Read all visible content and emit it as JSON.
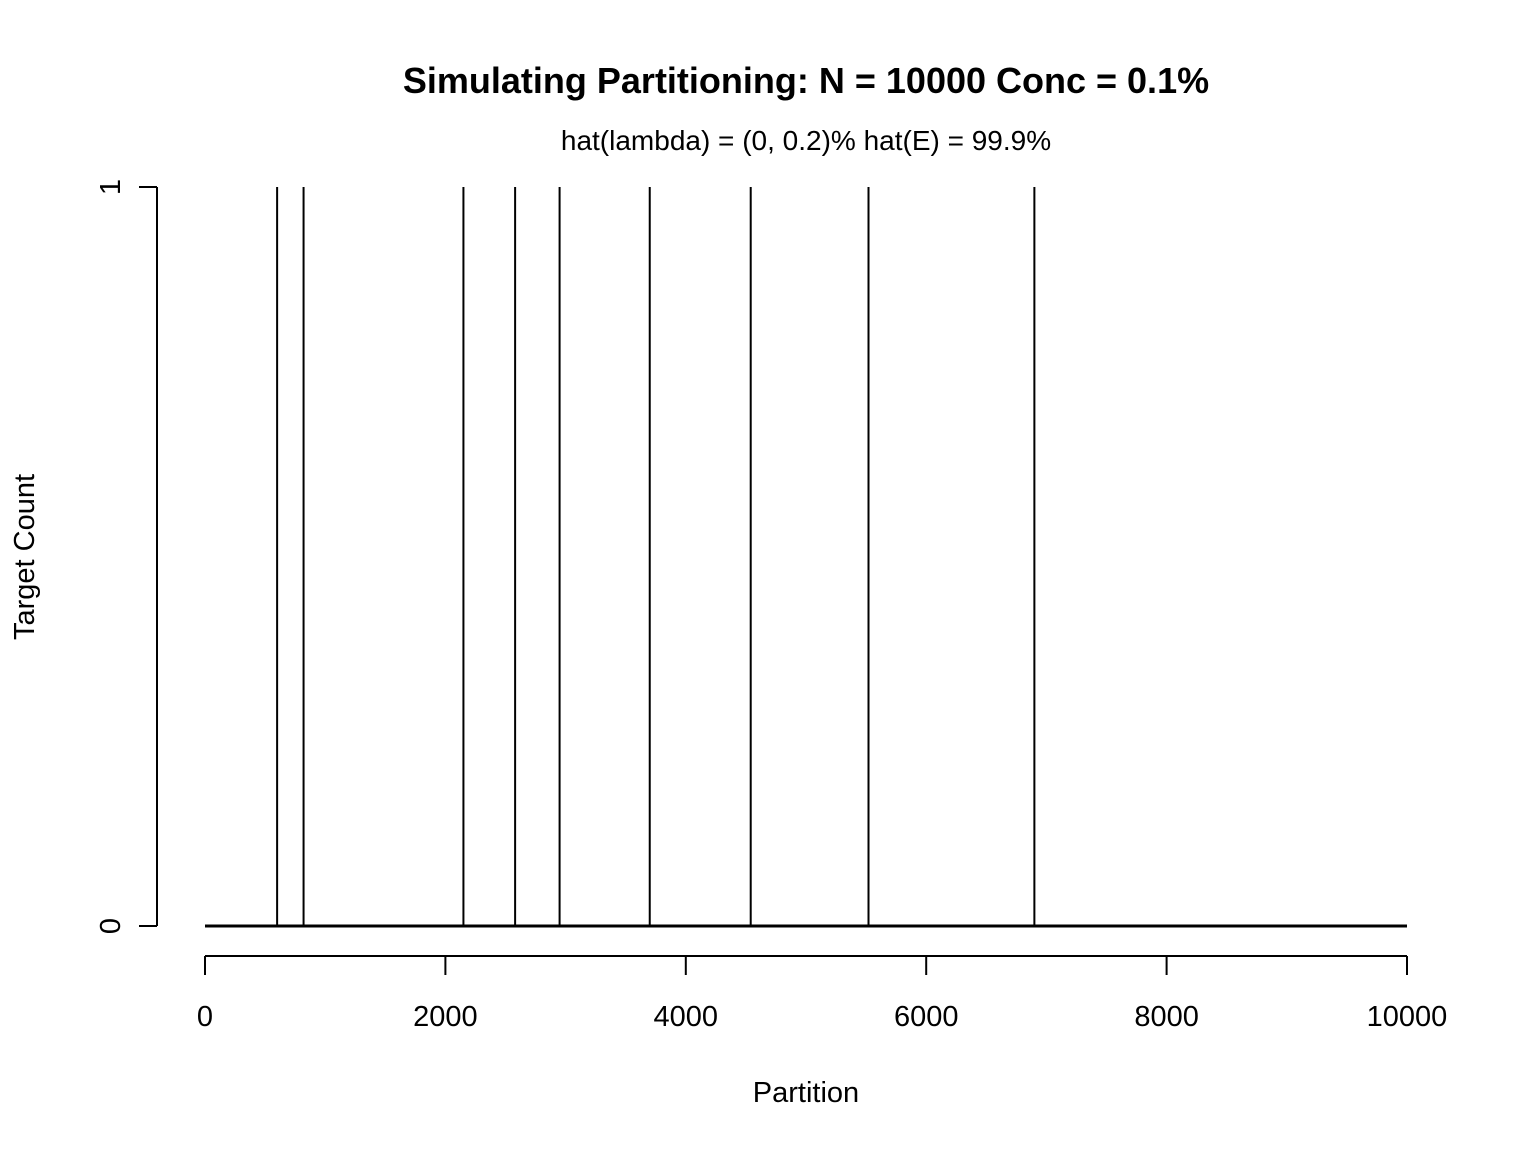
{
  "chart_data": {
    "type": "line",
    "title": "Simulating Partitioning: N = 10000 Conc = 0.1%",
    "subtitle": "hat(lambda) = (0, 0.2)%  hat(E) = 99.9%",
    "xlabel": "Partition",
    "ylabel": "Target Count",
    "xlim": [
      0,
      10000
    ],
    "ylim": [
      0,
      1
    ],
    "x_ticks": [
      0,
      2000,
      4000,
      6000,
      8000,
      10000
    ],
    "x_tick_labels": [
      "0",
      "2000",
      "4000",
      "6000",
      "8000",
      "10000"
    ],
    "y_ticks": [
      0,
      1
    ],
    "y_tick_labels": [
      "0",
      "1"
    ],
    "grid": false,
    "legend": "none",
    "series": [
      {
        "style": "histogram-spikes",
        "baseline": 0,
        "spike_x": [
          600,
          820,
          2150,
          2580,
          2950,
          3700,
          4540,
          5520,
          6900
        ],
        "spike_y": [
          1,
          1,
          1,
          1,
          1,
          1,
          1,
          1,
          1
        ]
      }
    ]
  }
}
